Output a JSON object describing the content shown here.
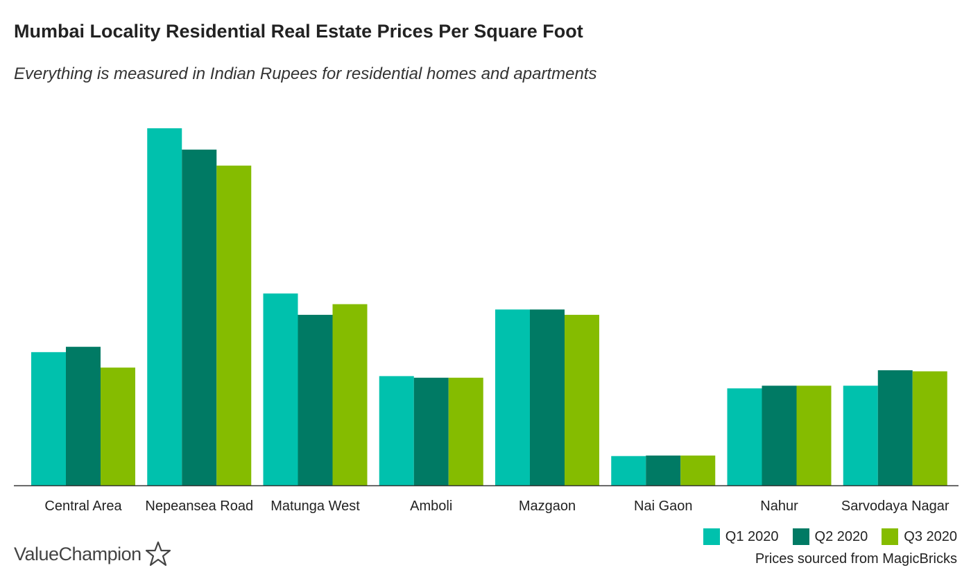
{
  "header": {
    "title": "Mumbai Locality Residential Real Estate Prices Per Square Foot",
    "subtitle": "Everything is measured in Indian Rupees for residential homes and apartments"
  },
  "legend": {
    "items": [
      {
        "label": "Q1 2020",
        "color": "#00c1ad"
      },
      {
        "label": "Q2 2020",
        "color": "#007a64"
      },
      {
        "label": "Q3 2020",
        "color": "#85bc00"
      }
    ]
  },
  "footer": {
    "source": "Prices sourced from MagicBricks",
    "logo_text": "ValueChampion",
    "logo_icon": "star-outline-icon"
  },
  "chart_data": {
    "type": "bar",
    "title": "Mumbai Locality Residential Real Estate Prices Per Square Foot",
    "subtitle": "Everything is measured in Indian Rupees for residential homes and apartments",
    "xlabel": "",
    "ylabel": "",
    "grid": false,
    "legend_position": "bottom-right",
    "ylim": [
      0,
      67000
    ],
    "categories": [
      "Central Area",
      "Nepeansea Road",
      "Matunga West",
      "Amboli",
      "Mazgaon",
      "Nai Gaon",
      "Nahur",
      "Sarvodaya Nagar"
    ],
    "series": [
      {
        "name": "Q1 2020",
        "color": "#00c1ad",
        "values": [
          25000,
          67000,
          36000,
          20500,
          33000,
          5500,
          18200,
          18700
        ]
      },
      {
        "name": "Q2 2020",
        "color": "#007a64",
        "values": [
          26000,
          63000,
          32000,
          20200,
          33000,
          5600,
          18700,
          21600
        ]
      },
      {
        "name": "Q3 2020",
        "color": "#85bc00",
        "values": [
          22100,
          60000,
          34000,
          20200,
          32000,
          5600,
          18700,
          21400
        ]
      }
    ]
  }
}
